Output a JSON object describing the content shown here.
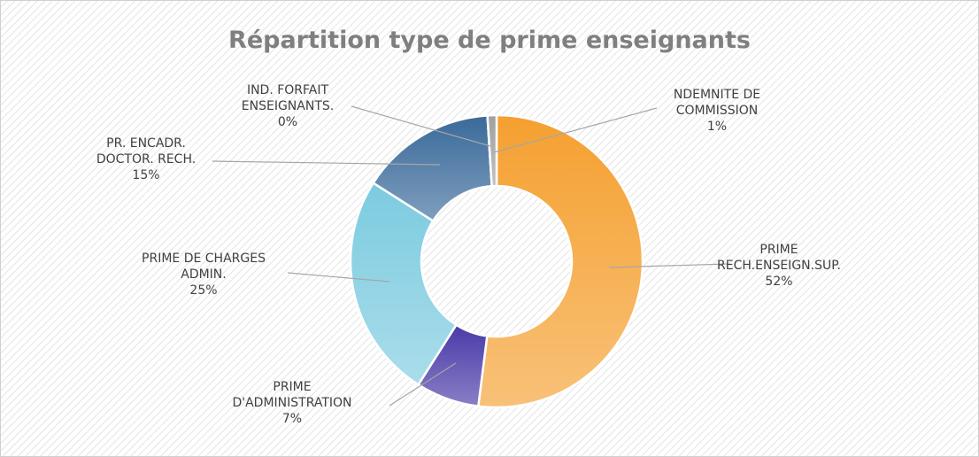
{
  "chart_data": {
    "type": "donut",
    "title": "Répartition type de prime enseignants",
    "categories": [
      "PRIME\nRECH.ENSEIGN.SUP.",
      "PRIME\nD'ADMINISTRATION",
      "PRIME DE CHARGES\nADMIN.",
      "PR. ENCADR.\nDOCTOR. RECH.",
      "IND. FORFAIT\nENSEIGNANTS.",
      "NDEMNITE DE\nCOMMISSION"
    ],
    "values": [
      52,
      7,
      25,
      15,
      0,
      1
    ],
    "value_labels": [
      "52%",
      "7%",
      "25%",
      "15%",
      "0%",
      "1%"
    ],
    "colors": [
      "#f5a030",
      "#4a3aa8",
      "#7ccbe0",
      "#3a6a9a",
      "#8aa0b8",
      "#a0a0a0"
    ]
  }
}
